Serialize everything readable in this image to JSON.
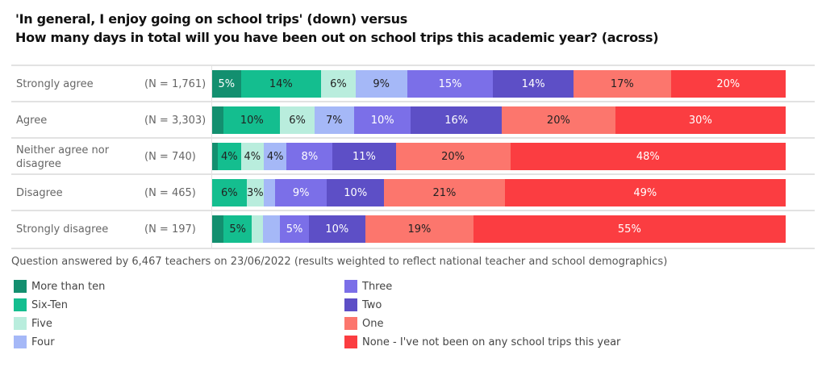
{
  "chart_data": {
    "type": "bar",
    "orientation": "horizontal",
    "stacked": "100%",
    "title": "'In general, I enjoy going on school trips' (down) versus",
    "subtitle": "How many days in total will you have been out on school trips this academic year? (across)",
    "categories": [
      "Strongly agree",
      "Agree",
      "Neither agree nor disagree",
      "Disagree",
      "Strongly disagree"
    ],
    "counts": [
      "(N = 1,761)",
      "(N = 3,303)",
      "(N = 740)",
      "(N = 465)",
      "(N = 197)"
    ],
    "series": [
      {
        "name": "More than ten",
        "color": "#138f6f",
        "text": "#ffffff",
        "values": [
          5,
          2,
          1,
          0,
          2
        ],
        "labels": [
          "5%",
          "",
          "",
          "",
          ""
        ]
      },
      {
        "name": "Six-Ten",
        "color": "#14be8f",
        "text": "#222222",
        "values": [
          14,
          10,
          4,
          6,
          5
        ],
        "labels": [
          "14%",
          "10%",
          "4%",
          "6%",
          "5%"
        ]
      },
      {
        "name": "Five",
        "color": "#b9eddd",
        "text": "#222222",
        "values": [
          6,
          6,
          4,
          3,
          2
        ],
        "labels": [
          "6%",
          "6%",
          "4%",
          "3%",
          ""
        ]
      },
      {
        "name": "Four",
        "color": "#a5b8f7",
        "text": "#222222",
        "values": [
          9,
          7,
          4,
          2,
          3
        ],
        "labels": [
          "9%",
          "7%",
          "4%",
          "",
          ""
        ]
      },
      {
        "name": "Three",
        "color": "#7b6fe8",
        "text": "#ffffff",
        "values": [
          15,
          10,
          8,
          9,
          5
        ],
        "labels": [
          "15%",
          "10%",
          "8%",
          "9%",
          "5%"
        ]
      },
      {
        "name": "Two",
        "color": "#5d4fc6",
        "text": "#ffffff",
        "values": [
          14,
          16,
          11,
          10,
          10
        ],
        "labels": [
          "14%",
          "16%",
          "11%",
          "10%",
          "10%"
        ]
      },
      {
        "name": "One",
        "color": "#fc766d",
        "text": "#222222",
        "values": [
          17,
          20,
          20,
          21,
          19
        ],
        "labels": [
          "17%",
          "20%",
          "20%",
          "21%",
          "19%"
        ]
      },
      {
        "name": "None - I've not been on any school trips this year",
        "color": "#fb3d41",
        "text": "#ffffff",
        "values": [
          20,
          30,
          48,
          49,
          55
        ],
        "labels": [
          "20%",
          "30%",
          "48%",
          "49%",
          "55%"
        ]
      }
    ],
    "xlim": [
      0,
      100
    ],
    "grid": false,
    "legend": "bottom",
    "note": "Question answered by 6,467 teachers on 23/06/2022 (results weighted to reflect national teacher and school demographics)"
  }
}
